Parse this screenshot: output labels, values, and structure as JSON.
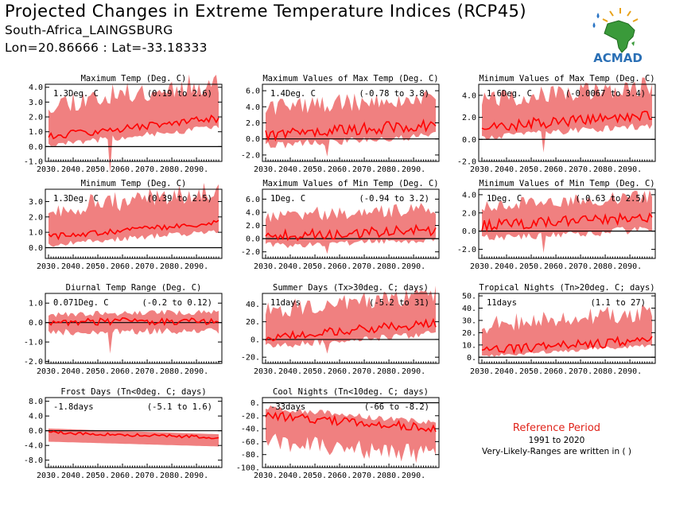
{
  "header": {
    "title": "Projected Changes in Extreme Temperature Indices (RCP45)",
    "location": "South-Africa_LAINGSBURG",
    "coords": "Lon=20.86666 : Lat=-33.18333"
  },
  "logo": {
    "text": "ACMAD",
    "icon": "africa-map-sun-rain-icon"
  },
  "reference": {
    "title": "Reference Period",
    "years": "1991 to 2020",
    "note": "Very-Likely-Ranges are written in ( )"
  },
  "colors": {
    "band": "#f08080",
    "line": "#ff0000",
    "zero_line": "#000000",
    "ref_title": "#e0241b"
  },
  "chart_data": [
    {
      "id": "txx_mean",
      "type": "area",
      "title": "Maximum Temp (Deg. C)",
      "stat": "1.3Deg. C",
      "range": "(0.19 to 2.6)",
      "x": [
        2030,
        2099
      ],
      "xticks": [
        "2030.",
        "2040.",
        "2050.",
        "2060.",
        "2070.",
        "2080.",
        "2090."
      ],
      "ylim": [
        -1.0,
        4.2
      ],
      "yticks": [
        "4.0",
        "3.0",
        "2.0",
        "1.0",
        "0.0",
        "-1.0"
      ],
      "ytick_values": [
        4,
        3,
        2,
        1,
        0,
        -1
      ],
      "median_start": 0.7,
      "median_end": 1.9,
      "band_low": 0.0,
      "band_high": 3.3,
      "noise": 0.25,
      "spike": -1.8,
      "seed": 11
    },
    {
      "id": "txx",
      "type": "area",
      "title": "Maximum Values of Max Temp (Deg. C)",
      "stat": "1.4Deg. C",
      "range": "(-0.78 to 3.8)",
      "x": [
        2030,
        2099
      ],
      "xticks": [
        "2030.",
        "2040.",
        "2050.",
        "2060.",
        "2070.",
        "2080.",
        "2090."
      ],
      "ylim": [
        -2.8,
        6.8
      ],
      "yticks": [
        "6.0",
        "4.0",
        "2.0",
        "0.0",
        "-2.0"
      ],
      "ytick_values": [
        6,
        4,
        2,
        0,
        -2
      ],
      "median_start": 0.5,
      "median_end": 1.8,
      "band_low": -1.1,
      "band_high": 4.4,
      "noise": 0.7,
      "spike": -2.2,
      "seed": 22
    },
    {
      "id": "txn",
      "type": "area",
      "title": "Minimum Values of Max Temp (Deg. C)",
      "stat": "1.6Deg. C",
      "range": "(-0.0067 to 3.4)",
      "x": [
        2030,
        2099
      ],
      "xticks": [
        "2030.",
        "2040.",
        "2050.",
        "2060.",
        "2070.",
        "2080.",
        "2090."
      ],
      "ylim": [
        -2.0,
        5.0
      ],
      "yticks": [
        "4.0",
        "2.0",
        "0.0",
        "-2.0"
      ],
      "ytick_values": [
        4,
        2,
        0,
        -2
      ],
      "median_start": 1.1,
      "median_end": 2.2,
      "band_low": 0.0,
      "band_high": 4.0,
      "noise": 0.5,
      "spike": -1.2,
      "seed": 33
    },
    {
      "id": "tn_mean",
      "type": "area",
      "title": "Minimum Temp (Deg. C)",
      "stat": "1.3Deg. C",
      "range": "(0.39 to 2.5)",
      "x": [
        2030,
        2099
      ],
      "xticks": [
        "2030.",
        "2040.",
        "2050.",
        "2060.",
        "2070.",
        "2080.",
        "2090."
      ],
      "ylim": [
        -0.7,
        3.8
      ],
      "yticks": [
        "3.0",
        "2.0",
        "1.0",
        "0.0"
      ],
      "ytick_values": [
        3,
        2,
        1,
        0
      ],
      "median_start": 0.7,
      "median_end": 1.6,
      "band_low": 0.1,
      "band_high": 2.9,
      "noise": 0.2,
      "spike": 0.0,
      "seed": 44
    },
    {
      "id": "tnx",
      "type": "area",
      "title": "Maximum Values of Min Temp (Deg. C)",
      "stat": "1Deg. C",
      "range": "(-0.94 to 3.2)",
      "x": [
        2030,
        2099
      ],
      "xticks": [
        "2030.",
        "2040.",
        "2050.",
        "2060.",
        "2070.",
        "2080.",
        "2090."
      ],
      "ylim": [
        -3.0,
        7.5
      ],
      "yticks": [
        "6.0",
        "4.0",
        "2.0",
        "0.0",
        "-2.0"
      ],
      "ytick_values": [
        6,
        4,
        2,
        0,
        -2
      ],
      "median_start": 0.4,
      "median_end": 1.3,
      "band_low": -1.3,
      "band_high": 4.0,
      "noise": 0.8,
      "spike": -2.3,
      "seed": 55
    },
    {
      "id": "tnn",
      "type": "area",
      "title": "Minimum Values of Min Temp (Deg. C)",
      "stat": "1Deg. C",
      "range": "(-0.63 to 2.5)",
      "x": [
        2030,
        2099
      ],
      "xticks": [
        "2030.",
        "2040.",
        "2050.",
        "2060.",
        "2070.",
        "2080.",
        "2090."
      ],
      "ylim": [
        -3.0,
        4.6
      ],
      "yticks": [
        "4.0",
        "2.0",
        "0.0",
        "-2.0"
      ],
      "ytick_values": [
        4,
        2,
        0,
        -2
      ],
      "median_start": 0.6,
      "median_end": 1.5,
      "band_low": -1.0,
      "band_high": 3.2,
      "noise": 0.6,
      "spike": -2.4,
      "seed": 66
    },
    {
      "id": "dtr",
      "type": "area",
      "title": "Diurnal Temp Range (Deg. C)",
      "stat": "0.071Deg. C",
      "range": "(-0.2 to 0.12)",
      "x": [
        2030,
        2099
      ],
      "xticks": [
        "2030.",
        "2040.",
        "2050.",
        "2060.",
        "2070.",
        "2080.",
        "2090."
      ],
      "ylim": [
        -2.1,
        1.5
      ],
      "yticks": [
        "1.0",
        "0.0",
        "-1.0",
        "-2.0"
      ],
      "ytick_values": [
        1,
        0,
        -1,
        -2
      ],
      "median_start": 0.0,
      "median_end": 0.1,
      "band_low": -0.6,
      "band_high": 0.5,
      "noise": 0.2,
      "spike": -1.6,
      "seed": 77
    },
    {
      "id": "su",
      "type": "area",
      "title": "Summer Days (Tx>30deg. C; days)",
      "stat": "11days",
      "range": "(-5.2 to 31)",
      "x": [
        2030,
        2099
      ],
      "xticks": [
        "2030.",
        "2040.",
        "2050.",
        "2060.",
        "2070.",
        "2080.",
        "2090."
      ],
      "ylim": [
        -27,
        52
      ],
      "yticks": [
        "40.",
        "20.",
        "0.",
        "-20."
      ],
      "ytick_values": [
        40,
        20,
        0,
        -20
      ],
      "median_start": 3,
      "median_end": 18,
      "band_low": -10,
      "band_high": 38,
      "noise": 5,
      "spike": -16,
      "seed": 88
    },
    {
      "id": "tr",
      "type": "area",
      "title": "Tropical Nights (Tn>20deg. C; days)",
      "stat": "11days",
      "range": "(1.1 to 27)",
      "x": [
        2030,
        2099
      ],
      "xticks": [
        "2030.",
        "2040.",
        "2050.",
        "2060.",
        "2070.",
        "2080.",
        "2090."
      ],
      "ylim": [
        -5,
        52
      ],
      "yticks": [
        "50.",
        "40.",
        "30.",
        "20.",
        "10.",
        "0."
      ],
      "ytick_values": [
        50,
        40,
        30,
        20,
        10,
        0
      ],
      "median_start": 5,
      "median_end": 14,
      "band_low": 0,
      "band_high": 30,
      "noise": 4,
      "spike": 0,
      "seed": 99
    },
    {
      "id": "fd",
      "type": "area",
      "title": "Frost Days (Tn<0deg. C; days)",
      "stat": "-1.8days",
      "range": "(-5.1 to 1.6)",
      "x": [
        2030,
        2099
      ],
      "xticks": [
        "2030.",
        "2040.",
        "2050.",
        "2060.",
        "2070.",
        "2080.",
        "2090."
      ],
      "ylim": [
        -10,
        9
      ],
      "yticks": [
        "8.0",
        "4.0",
        "0.0",
        "-4.0",
        "-8.0"
      ],
      "ytick_values": [
        8,
        4,
        0,
        -4,
        -8
      ],
      "median_start": -0.5,
      "median_end": -1.8,
      "band_low": -5,
      "band_high": 1.5,
      "noise": 0.4,
      "spike": 0,
      "flat": true,
      "seed": 111
    },
    {
      "id": "tn10",
      "type": "area",
      "title": "Cool Nights (Tn<10deg. C; days)",
      "stat": "-33days",
      "range": "(-66 to -8.2)",
      "x": [
        2030,
        2099
      ],
      "xticks": [
        "2030.",
        "2040.",
        "2050.",
        "2060.",
        "2070.",
        "2080.",
        "2090."
      ],
      "ylim": [
        -100,
        8
      ],
      "yticks": [
        "0.",
        "-20.",
        "-40.",
        "-60.",
        "-80.",
        "-100."
      ],
      "ytick_values": [
        0,
        -20,
        -40,
        -60,
        -80,
        -100
      ],
      "median_start": -20,
      "median_end": -40,
      "band_low": -68,
      "band_high": -5,
      "noise": 7,
      "spike": 0,
      "seed": 122
    }
  ]
}
